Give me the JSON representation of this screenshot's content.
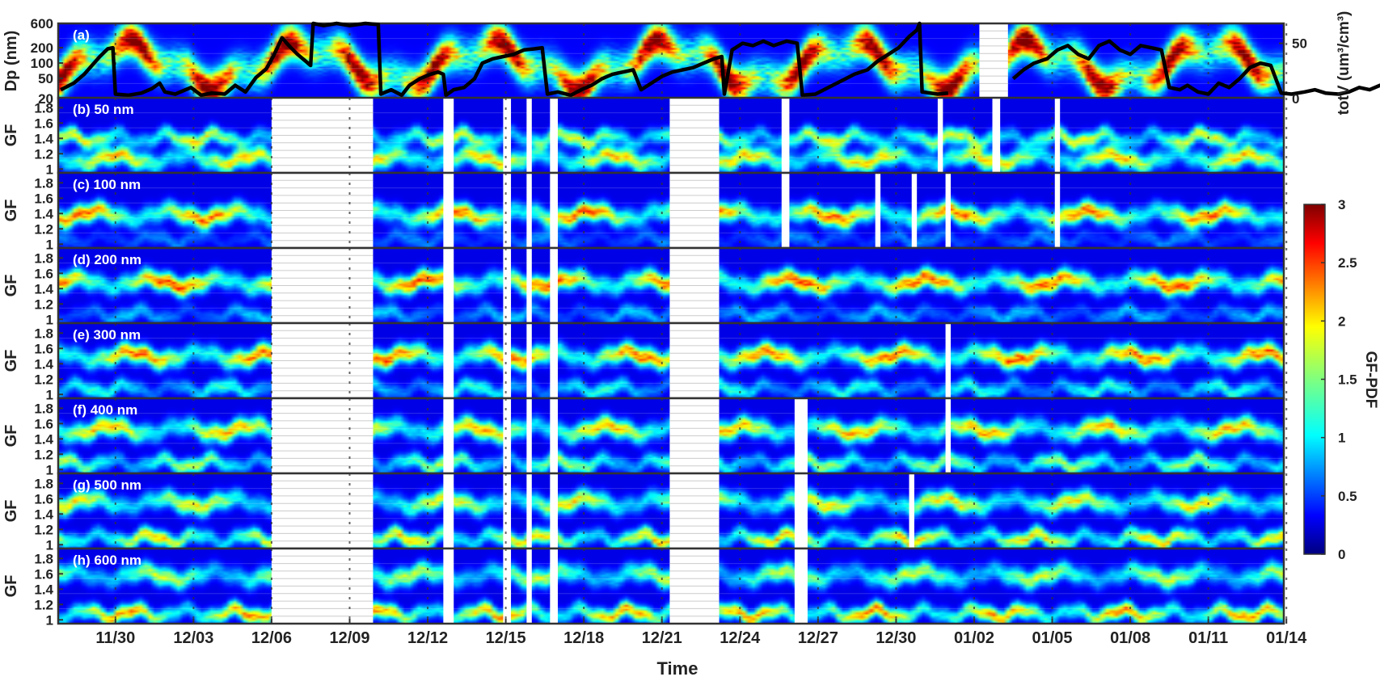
{
  "chart_data": {
    "type": "heatmap",
    "xlabel": "Time",
    "x_ticks": [
      "11/30",
      "12/03",
      "12/06",
      "12/09",
      "12/12",
      "12/15",
      "12/18",
      "12/21",
      "12/24",
      "12/27",
      "12/30",
      "01/02",
      "01/05",
      "01/08",
      "01/11",
      "01/14"
    ],
    "x_range_days": [
      -2.2,
      44.9
    ],
    "grid": true,
    "colorbar": {
      "label": "GF-PDF",
      "ticks": [
        "0",
        "0.5",
        "1",
        "1.5",
        "2",
        "2.5",
        "3"
      ],
      "range": [
        0,
        3
      ],
      "colormap": "jet"
    },
    "panels": [
      {
        "label": "(a)",
        "ylabel": "Dp (nm)",
        "yscale": "log",
        "yticks": [
          "20",
          "50",
          "100",
          "200",
          "600"
        ],
        "ylim": [
          20,
          600
        ],
        "right_axis": {
          "label": "totV (um³/cm³)",
          "ticks": [
            "0",
            "50"
          ],
          "ylim": [
            0,
            68
          ]
        },
        "gaps": [
          [
            33.2,
            34.3
          ]
        ],
        "totV_series": [
          [
            -2.1,
            8
          ],
          [
            -1.6,
            14
          ],
          [
            -1.2,
            22
          ],
          [
            -0.9,
            30
          ],
          [
            -0.6,
            38
          ],
          [
            -0.3,
            45
          ],
          [
            -0.1,
            46
          ],
          [
            0.0,
            4
          ],
          [
            0.5,
            3
          ],
          [
            1.0,
            5
          ],
          [
            1.4,
            9
          ],
          [
            1.7,
            14
          ],
          [
            1.9,
            6
          ],
          [
            2.3,
            4
          ],
          [
            2.9,
            10
          ],
          [
            3.3,
            3
          ],
          [
            3.7,
            5
          ],
          [
            4.2,
            4
          ],
          [
            4.6,
            12
          ],
          [
            5.0,
            6
          ],
          [
            5.4,
            19
          ],
          [
            5.8,
            27
          ],
          [
            6.1,
            40
          ],
          [
            6.4,
            55
          ],
          [
            6.7,
            47
          ],
          [
            7.0,
            40
          ],
          [
            7.3,
            34
          ],
          [
            7.5,
            30
          ],
          [
            7.6,
            68
          ],
          [
            8.0,
            66
          ],
          [
            8.5,
            68
          ],
          [
            9.0,
            66
          ],
          [
            9.6,
            68
          ],
          [
            10.1,
            67
          ],
          [
            10.2,
            4
          ],
          [
            10.6,
            8
          ],
          [
            11.0,
            3
          ],
          [
            11.3,
            12
          ],
          [
            11.7,
            18
          ],
          [
            12.1,
            22
          ],
          [
            12.4,
            24
          ],
          [
            12.6,
            22
          ],
          [
            12.7,
            3
          ],
          [
            13.0,
            8
          ],
          [
            13.4,
            10
          ],
          [
            13.8,
            18
          ],
          [
            14.1,
            32
          ],
          [
            14.5,
            36
          ],
          [
            14.9,
            38
          ],
          [
            15.3,
            40
          ],
          [
            15.7,
            44
          ],
          [
            16.1,
            45
          ],
          [
            16.4,
            46
          ],
          [
            16.6,
            4
          ],
          [
            17.0,
            6
          ],
          [
            17.5,
            3
          ],
          [
            17.9,
            8
          ],
          [
            18.3,
            12
          ],
          [
            18.7,
            18
          ],
          [
            19.1,
            22
          ],
          [
            19.5,
            24
          ],
          [
            19.9,
            26
          ],
          [
            20.2,
            8
          ],
          [
            20.6,
            14
          ],
          [
            21.0,
            20
          ],
          [
            21.4,
            24
          ],
          [
            21.8,
            26
          ],
          [
            22.2,
            28
          ],
          [
            22.6,
            32
          ],
          [
            23.0,
            36
          ],
          [
            23.3,
            38
          ],
          [
            23.4,
            4
          ],
          [
            23.7,
            44
          ],
          [
            24.1,
            50
          ],
          [
            24.5,
            48
          ],
          [
            24.9,
            52
          ],
          [
            25.3,
            48
          ],
          [
            25.8,
            52
          ],
          [
            26.2,
            50
          ],
          [
            26.4,
            3
          ],
          [
            26.9,
            4
          ],
          [
            27.4,
            10
          ],
          [
            27.9,
            16
          ],
          [
            28.4,
            22
          ],
          [
            28.9,
            26
          ],
          [
            29.3,
            34
          ],
          [
            29.7,
            40
          ],
          [
            30.1,
            46
          ],
          [
            30.5,
            56
          ],
          [
            30.8,
            62
          ],
          [
            30.9,
            68
          ],
          [
            31.0,
            6
          ],
          [
            31.6,
            4
          ],
          [
            32.0,
            5
          ],
          [
            34.5,
            18
          ],
          [
            34.9,
            26
          ],
          [
            35.3,
            32
          ],
          [
            35.8,
            36
          ],
          [
            36.2,
            44
          ],
          [
            36.6,
            48
          ],
          [
            37.0,
            40
          ],
          [
            37.4,
            36
          ],
          [
            37.8,
            48
          ],
          [
            38.2,
            52
          ],
          [
            38.6,
            44
          ],
          [
            39.0,
            40
          ],
          [
            39.4,
            48
          ],
          [
            39.8,
            46
          ],
          [
            40.2,
            44
          ],
          [
            40.5,
            10
          ],
          [
            40.9,
            8
          ],
          [
            41.2,
            12
          ],
          [
            41.6,
            6
          ],
          [
            42.0,
            4
          ],
          [
            42.4,
            14
          ],
          [
            42.8,
            10
          ],
          [
            43.2,
            18
          ],
          [
            43.6,
            28
          ],
          [
            44.0,
            32
          ],
          [
            44.4,
            30
          ],
          [
            44.8,
            5
          ],
          [
            45.2,
            4
          ],
          [
            45.7,
            6
          ],
          [
            46.1,
            8
          ],
          [
            46.5,
            5
          ],
          [
            47.0,
            4
          ],
          [
            47.4,
            6
          ],
          [
            47.8,
            10
          ],
          [
            48.2,
            8
          ],
          [
            48.6,
            12
          ],
          [
            48.9,
            10
          ]
        ]
      },
      {
        "label": "(b) 50 nm",
        "ylabel": "GF",
        "yticks": [
          "1",
          "1.2",
          "1.4",
          "1.6",
          "1.8"
        ],
        "ylim": [
          0.95,
          1.93
        ],
        "gaps": [
          [
            6.0,
            9.9
          ],
          [
            12.6,
            13.0
          ],
          [
            14.9,
            15.2
          ],
          [
            15.8,
            16.0
          ],
          [
            16.7,
            17.0
          ],
          [
            21.3,
            23.2
          ],
          [
            25.6,
            25.9
          ],
          [
            31.6,
            31.8
          ],
          [
            33.7,
            34.0
          ],
          [
            36.1,
            36.3
          ]
        ],
        "modes": [
          {
            "gf": 1.12,
            "w": 1.8
          },
          {
            "gf": 1.4,
            "w": 1.6
          }
        ]
      },
      {
        "label": "(c) 100 nm",
        "ylabel": "GF",
        "yticks": [
          "1",
          "1.2",
          "1.4",
          "1.6",
          "1.8"
        ],
        "ylim": [
          0.95,
          1.93
        ],
        "gaps": [
          [
            6.0,
            9.9
          ],
          [
            12.6,
            13.0
          ],
          [
            14.9,
            15.2
          ],
          [
            15.8,
            16.0
          ],
          [
            16.7,
            17.0
          ],
          [
            21.3,
            23.2
          ],
          [
            25.6,
            25.9
          ],
          [
            29.2,
            29.4
          ],
          [
            30.6,
            30.8
          ],
          [
            31.9,
            32.1
          ],
          [
            36.1,
            36.3
          ]
        ],
        "modes": [
          {
            "gf": 1.38,
            "w": 2.1
          },
          {
            "gf": 1.05,
            "w": 0.5
          }
        ]
      },
      {
        "label": "(d) 200 nm",
        "ylabel": "GF",
        "yticks": [
          "1",
          "1.2",
          "1.4",
          "1.6",
          "1.8"
        ],
        "ylim": [
          0.95,
          1.93
        ],
        "gaps": [
          [
            6.0,
            9.9
          ],
          [
            12.6,
            13.0
          ],
          [
            14.9,
            15.2
          ],
          [
            15.8,
            16.0
          ],
          [
            16.7,
            17.0
          ],
          [
            21.3,
            23.2
          ]
        ],
        "modes": [
          {
            "gf": 1.48,
            "w": 2.2
          },
          {
            "gf": 1.05,
            "w": 0.7
          }
        ]
      },
      {
        "label": "(e) 300 nm",
        "ylabel": "GF",
        "yticks": [
          "1",
          "1.2",
          "1.4",
          "1.6",
          "1.8"
        ],
        "ylim": [
          0.95,
          1.93
        ],
        "gaps": [
          [
            6.0,
            9.9
          ],
          [
            12.6,
            13.0
          ],
          [
            14.9,
            15.2
          ],
          [
            15.8,
            16.0
          ],
          [
            16.7,
            17.0
          ],
          [
            21.3,
            23.2
          ],
          [
            31.9,
            32.1
          ]
        ],
        "modes": [
          {
            "gf": 1.5,
            "w": 2.1
          },
          {
            "gf": 1.06,
            "w": 1.0
          }
        ]
      },
      {
        "label": "(f) 400 nm",
        "ylabel": "GF",
        "yticks": [
          "1",
          "1.2",
          "1.4",
          "1.6",
          "1.8"
        ],
        "ylim": [
          0.95,
          1.93
        ],
        "gaps": [
          [
            6.0,
            9.9
          ],
          [
            12.6,
            13.0
          ],
          [
            14.9,
            15.2
          ],
          [
            15.8,
            16.0
          ],
          [
            16.7,
            17.0
          ],
          [
            21.3,
            23.2
          ],
          [
            26.1,
            26.6
          ],
          [
            31.9,
            32.1
          ]
        ],
        "modes": [
          {
            "gf": 1.52,
            "w": 1.9
          },
          {
            "gf": 1.07,
            "w": 1.4
          }
        ]
      },
      {
        "label": "(g) 500 nm",
        "ylabel": "GF",
        "yticks": [
          "1",
          "1.2",
          "1.4",
          "1.6",
          "1.8"
        ],
        "ylim": [
          0.95,
          1.93
        ],
        "gaps": [
          [
            6.0,
            9.9
          ],
          [
            12.6,
            13.0
          ],
          [
            14.9,
            15.2
          ],
          [
            15.8,
            16.0
          ],
          [
            16.7,
            17.0
          ],
          [
            21.3,
            23.2
          ],
          [
            26.1,
            26.6
          ],
          [
            30.5,
            30.7
          ]
        ],
        "modes": [
          {
            "gf": 1.55,
            "w": 1.7
          },
          {
            "gf": 1.07,
            "w": 1.8
          }
        ]
      },
      {
        "label": "(h) 600 nm",
        "ylabel": "GF",
        "yticks": [
          "1",
          "1.2",
          "1.4",
          "1.6",
          "1.8"
        ],
        "ylim": [
          0.95,
          1.93
        ],
        "gaps": [
          [
            6.0,
            9.9
          ],
          [
            12.6,
            13.0
          ],
          [
            14.9,
            15.2
          ],
          [
            15.8,
            16.0
          ],
          [
            16.7,
            17.0
          ],
          [
            21.3,
            23.2
          ],
          [
            26.1,
            26.6
          ]
        ],
        "modes": [
          {
            "gf": 1.58,
            "w": 1.5
          },
          {
            "gf": 1.07,
            "w": 2.0
          }
        ]
      }
    ]
  }
}
